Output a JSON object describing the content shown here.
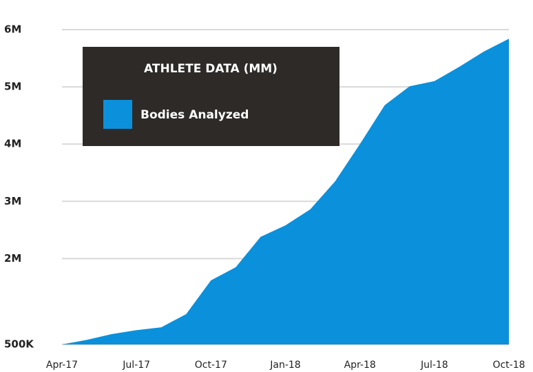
{
  "chart_data": {
    "type": "area",
    "title": "ATHLETE DATA (MM)",
    "categories": [
      "Apr-17",
      null,
      null,
      "Jul-17",
      null,
      null,
      "Oct-17",
      null,
      null,
      "Jan-18",
      null,
      null,
      "Apr-18",
      null,
      null,
      "Jul-18",
      null,
      null,
      "Oct-18"
    ],
    "series": [
      {
        "name": "Bodies Analyzed",
        "color": "#0b90db",
        "values": [
          500000,
          580000,
          680000,
          750000,
          800000,
          1030000,
          1620000,
          1850000,
          2380000,
          2580000,
          2860000,
          3350000,
          4000000,
          4680000,
          5010000,
          5100000,
          5350000,
          5620000,
          5840000
        ]
      }
    ],
    "ylim": [
      500000,
      6000000
    ],
    "yticks": [
      {
        "value": 500000,
        "label": "500K"
      },
      {
        "value": 2000000,
        "label": "2M"
      },
      {
        "value": 3000000,
        "label": "3M"
      },
      {
        "value": 4000000,
        "label": "4M"
      },
      {
        "value": 5000000,
        "label": "5M"
      },
      {
        "value": 6000000,
        "label": "6M"
      }
    ],
    "grid": true
  }
}
